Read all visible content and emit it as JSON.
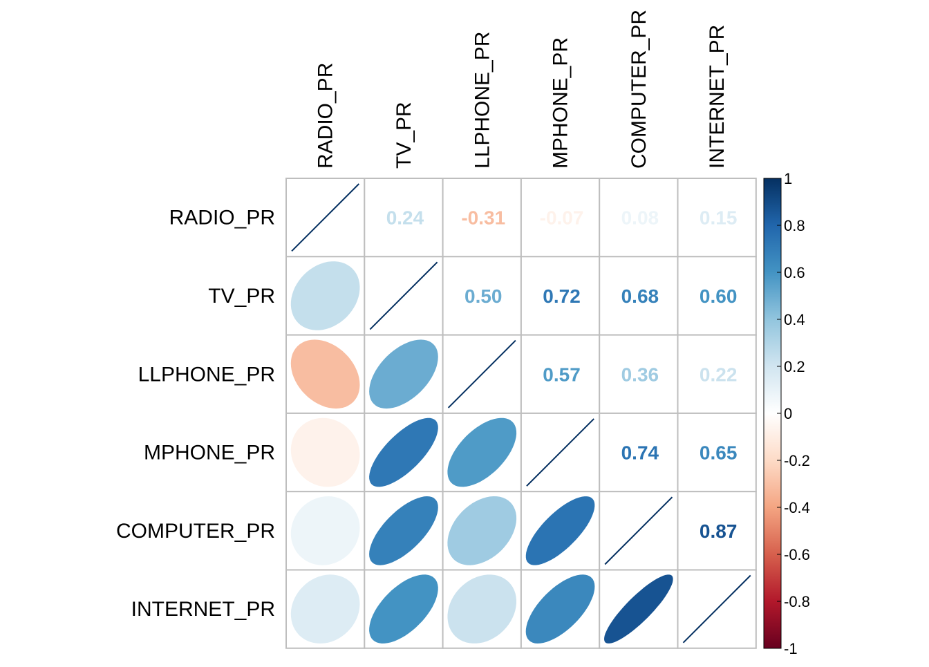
{
  "chart_data": {
    "type": "heatmap",
    "variables": [
      "RADIO_PR",
      "TV_PR",
      "LLPHONE_PR",
      "MPHONE_PR",
      "COMPUTER_PR",
      "INTERNET_PR"
    ],
    "matrix": [
      [
        1.0,
        0.24,
        -0.31,
        -0.07,
        0.08,
        0.15
      ],
      [
        0.24,
        1.0,
        0.5,
        0.72,
        0.68,
        0.6
      ],
      [
        -0.31,
        0.5,
        1.0,
        0.57,
        0.36,
        0.22
      ],
      [
        -0.07,
        0.72,
        0.57,
        1.0,
        0.74,
        0.65
      ],
      [
        0.08,
        0.68,
        0.36,
        0.74,
        1.0,
        0.87
      ],
      [
        0.15,
        0.6,
        0.22,
        0.65,
        0.87,
        1.0
      ]
    ],
    "upper_method": "number",
    "lower_method": "ellipse",
    "diagonal_method": "line",
    "color_range": [
      -1,
      1
    ],
    "colorbar_ticks": [
      "1",
      "0.8",
      "0.6",
      "0.4",
      "0.2",
      "0",
      "-0.2",
      "-0.4",
      "-0.6",
      "-0.8",
      "-1"
    ],
    "palette": [
      "#67001F",
      "#B2182B",
      "#D6604D",
      "#F4A582",
      "#FDDBC7",
      "#FFFFFF",
      "#D1E5F0",
      "#92C5DE",
      "#4393C3",
      "#2166AC",
      "#053061"
    ],
    "grid": true,
    "legend_position": "right",
    "grid_color": "#BEBEBE"
  }
}
